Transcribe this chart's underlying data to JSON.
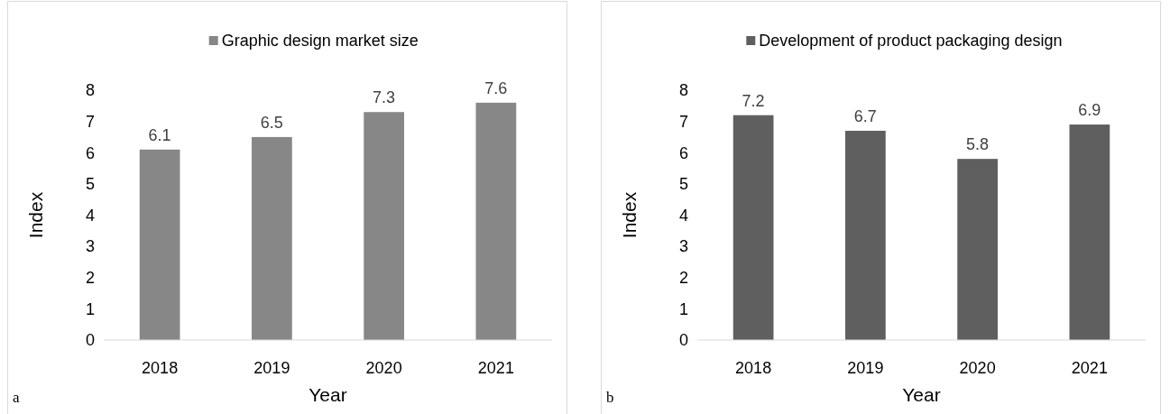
{
  "chart_data": [
    {
      "type": "bar",
      "categories": [
        "2018",
        "2019",
        "2020",
        "2021"
      ],
      "series": [
        {
          "name": "Graphic design market size",
          "color": "#878787",
          "values": [
            6.1,
            6.5,
            7.3,
            7.6
          ]
        }
      ],
      "xlabel": "Year",
      "ylabel": "Index",
      "ylim": [
        0,
        8
      ],
      "yticks": [
        0,
        1,
        2,
        3,
        4,
        5,
        6,
        7,
        8
      ],
      "data_labels": true,
      "legend": "top",
      "annotations": [
        "a"
      ]
    },
    {
      "type": "bar",
      "categories": [
        "2018",
        "2019",
        "2020",
        "2021"
      ],
      "series": [
        {
          "name": "Development of product packaging design",
          "color": "#5f5f5f",
          "values": [
            7.2,
            6.7,
            5.8,
            6.9
          ]
        }
      ],
      "xlabel": "Year",
      "ylabel": "Index",
      "ylim": [
        0,
        8
      ],
      "yticks": [
        0,
        1,
        2,
        3,
        4,
        5,
        6,
        7,
        8
      ],
      "data_labels": true,
      "legend": "top",
      "annotations": [
        "b"
      ]
    }
  ]
}
